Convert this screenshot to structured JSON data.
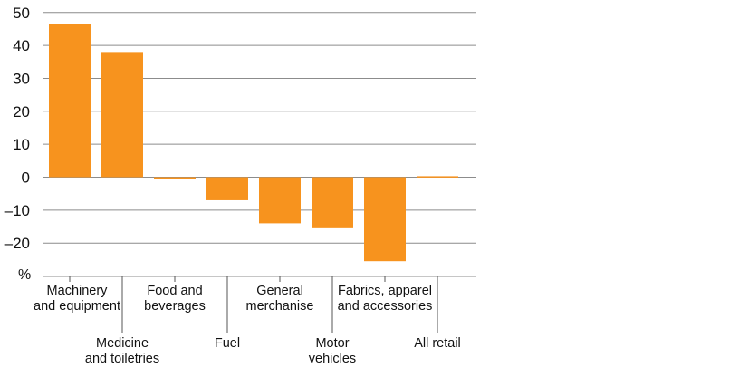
{
  "chart_data": {
    "type": "bar",
    "title": "",
    "xlabel": "",
    "ylabel": "%",
    "ylim": [
      -30,
      50
    ],
    "yticks": [
      50,
      40,
      30,
      20,
      10,
      0,
      -10,
      -20
    ],
    "ytick_labels": [
      "50",
      "40",
      "30",
      "20",
      "10",
      "0",
      "–10",
      "–20"
    ],
    "grid": true,
    "categories": [
      [
        "Machinery",
        "and equipment"
      ],
      [
        "Medicine",
        "and toiletries"
      ],
      [
        "Food and",
        "beverages"
      ],
      [
        "Fuel"
      ],
      [
        "General",
        "merchanise"
      ],
      [
        "Motor",
        "vehicles"
      ],
      [
        "Fabrics, apparel",
        "and accessories"
      ],
      [
        "All retail"
      ]
    ],
    "values": [
      46.5,
      38,
      -0.5,
      -7,
      -14,
      -15.5,
      -25.5,
      0.3
    ],
    "bar_color": "#f7931e"
  }
}
